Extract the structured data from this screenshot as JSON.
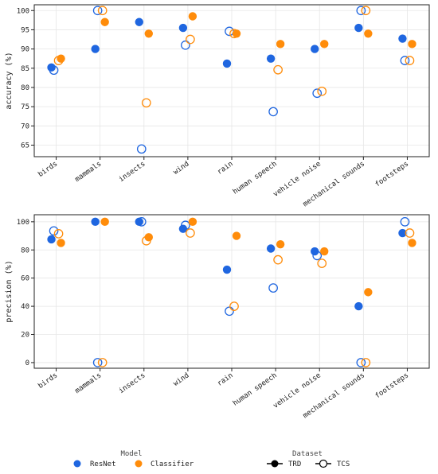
{
  "colors": {
    "resnet": "#1f66e0",
    "classifier": "#ff8c0a"
  },
  "chart_data": [
    {
      "type": "scatter",
      "ylabel": "accuracy (%)",
      "xlabel": "",
      "ylim": [
        62,
        101.5
      ],
      "yticks": [
        65,
        70,
        75,
        80,
        85,
        90,
        95,
        100
      ],
      "grid": true,
      "categories": [
        "birds",
        "mammals",
        "insects",
        "wind",
        "rain",
        "human speech",
        "vehicle noise",
        "mechanical sounds",
        "footsteps"
      ],
      "series": [
        {
          "name": "ResNet",
          "dataset": "TRD",
          "values": [
            85.2,
            90.0,
            97.0,
            95.5,
            86.2,
            87.5,
            90.0,
            95.5,
            92.7
          ]
        },
        {
          "name": "ResNet",
          "dataset": "TCS",
          "values": [
            84.5,
            100.0,
            64.0,
            91.0,
            94.6,
            73.7,
            78.5,
            100.0,
            87.0
          ]
        },
        {
          "name": "Classifier",
          "dataset": "TRD",
          "values": [
            87.5,
            97.0,
            94.0,
            98.5,
            94.0,
            91.3,
            91.3,
            94.0,
            91.3
          ]
        },
        {
          "name": "Classifier",
          "dataset": "TCS",
          "values": [
            87.0,
            100.0,
            76.0,
            92.5,
            94.0,
            84.6,
            79.0,
            100.0,
            87.0
          ]
        }
      ]
    },
    {
      "type": "scatter",
      "ylabel": "precision (%)",
      "xlabel": "",
      "ylim": [
        -4,
        105
      ],
      "yticks": [
        0,
        20,
        40,
        60,
        80,
        100
      ],
      "grid": true,
      "categories": [
        "birds",
        "mammals",
        "insects",
        "wind",
        "rain",
        "human speech",
        "vehicle noise",
        "mechanical sounds",
        "footsteps"
      ],
      "series": [
        {
          "name": "ResNet",
          "dataset": "TRD",
          "values": [
            87.5,
            100.0,
            100.0,
            95.0,
            66.0,
            81.0,
            79.0,
            40.0,
            92.0
          ]
        },
        {
          "name": "ResNet",
          "dataset": "TCS",
          "values": [
            93.5,
            0.0,
            100.0,
            97.5,
            36.5,
            53.0,
            76.0,
            0.0,
            100.0
          ]
        },
        {
          "name": "Classifier",
          "dataset": "TRD",
          "values": [
            85.0,
            100.0,
            89.0,
            100.0,
            90.0,
            84.0,
            79.0,
            50.0,
            85.0
          ]
        },
        {
          "name": "Classifier",
          "dataset": "TCS",
          "values": [
            91.5,
            0.0,
            86.5,
            92.0,
            40.0,
            73.0,
            70.5,
            0.0,
            92.0
          ]
        }
      ]
    }
  ],
  "legend": {
    "placement": "bottom",
    "model_title": "Model",
    "model_items": [
      {
        "label": "ResNet",
        "color_key": "resnet"
      },
      {
        "label": "Classifier",
        "color_key": "classifier"
      }
    ],
    "dataset_title": "Dataset",
    "dataset_items": [
      {
        "label": "TRD",
        "style": "filled"
      },
      {
        "label": "TCS",
        "style": "hollow"
      }
    ]
  }
}
